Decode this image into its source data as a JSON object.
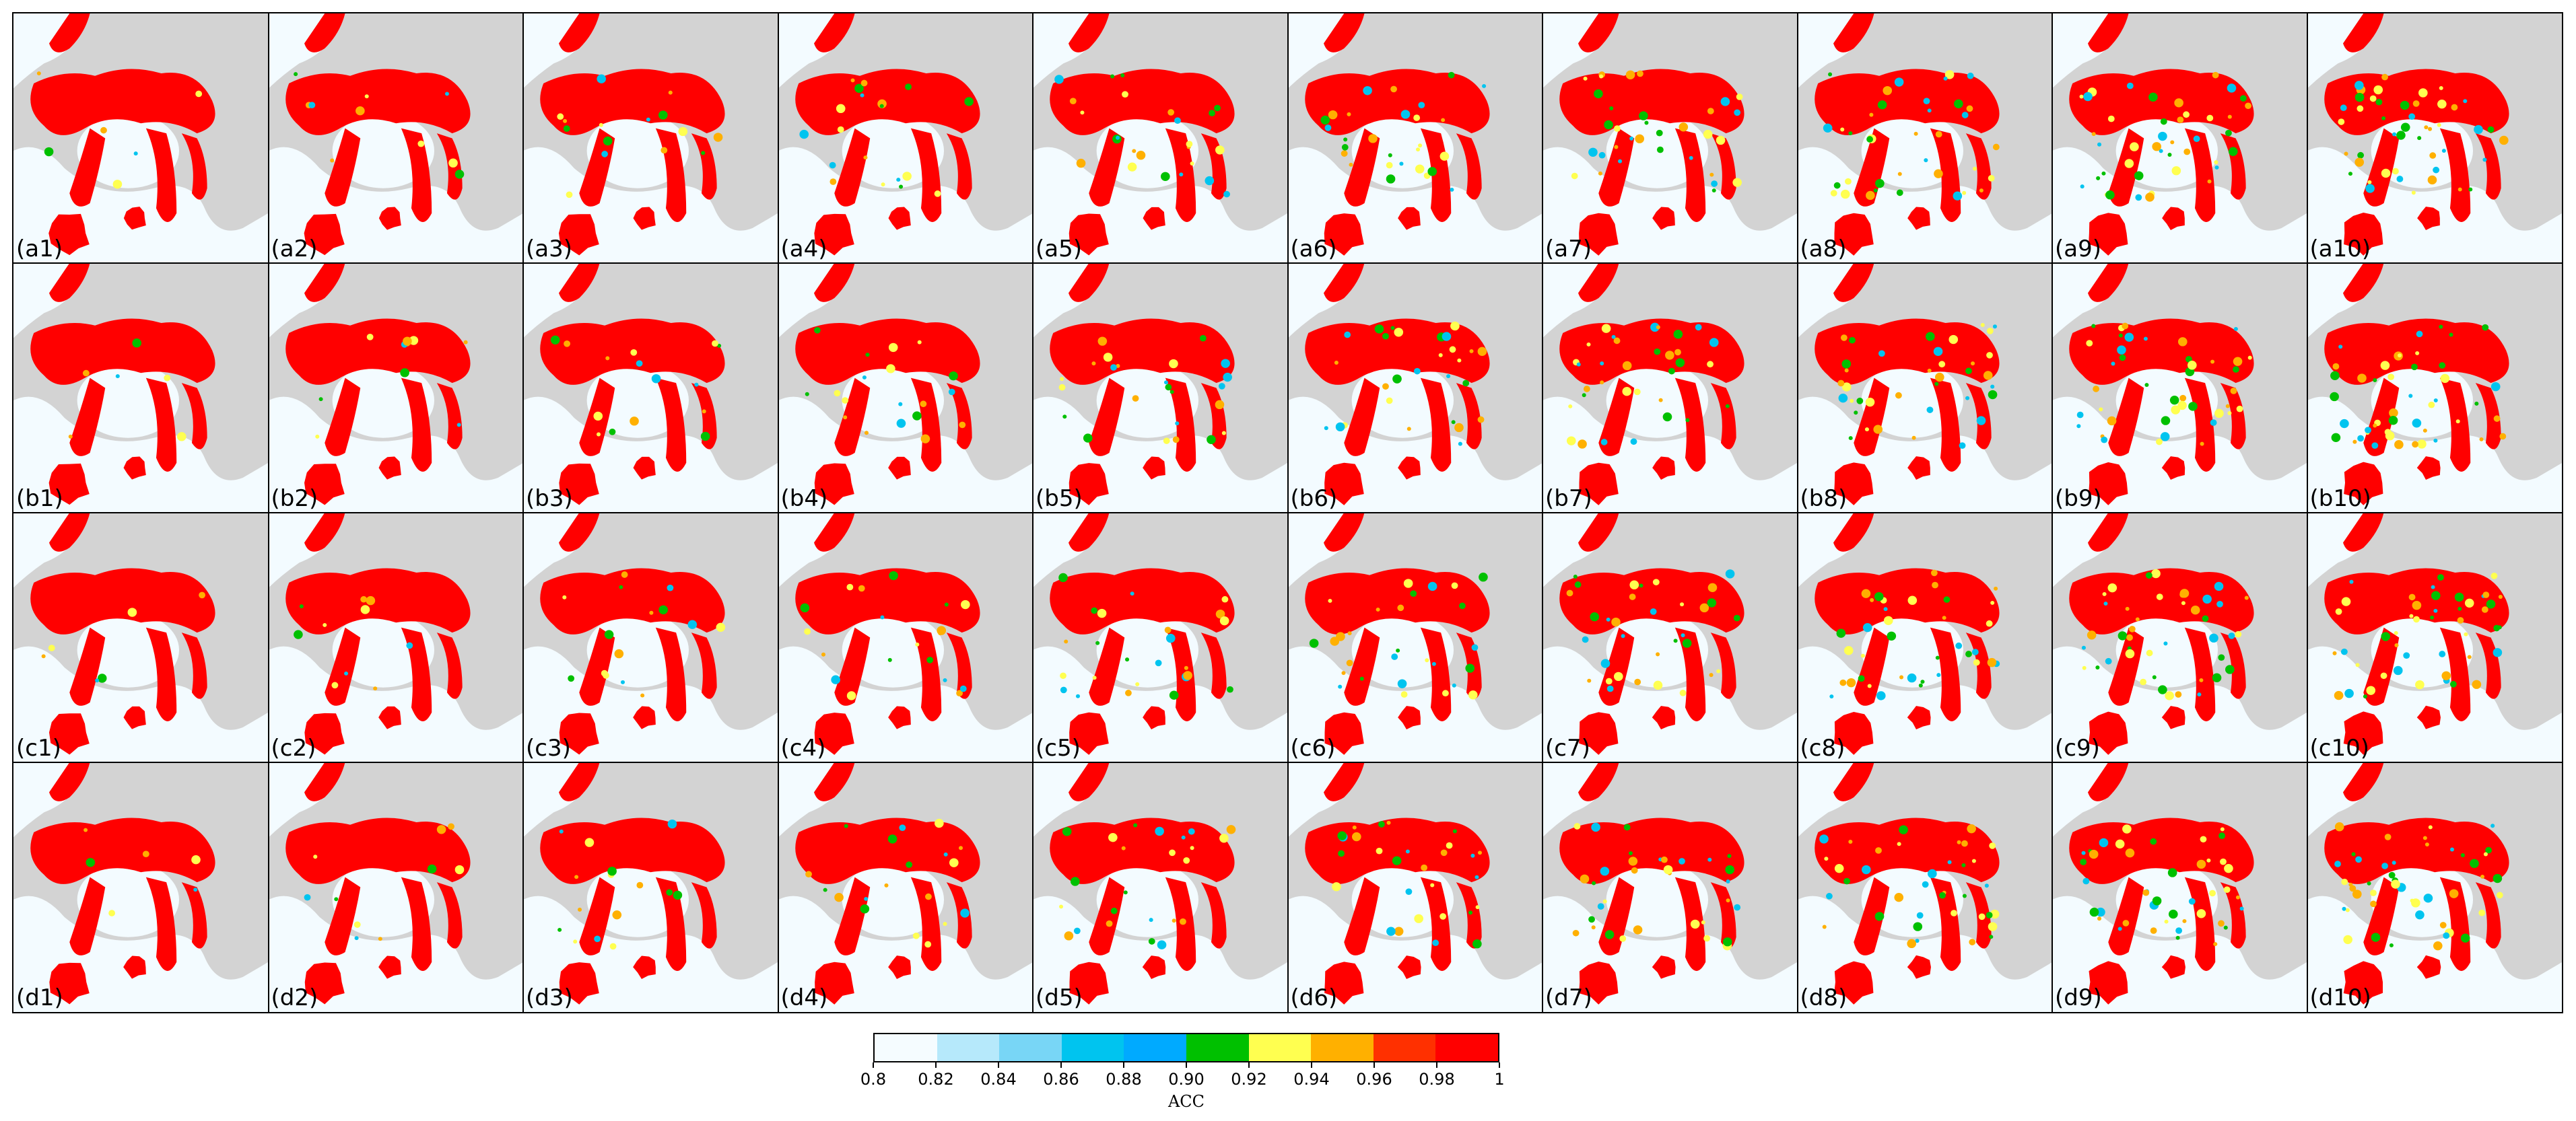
{
  "panels": [
    [
      "(a1)",
      "(a2)",
      "(a3)",
      "(a4)",
      "(a5)",
      "(a6)",
      "(a7)",
      "(a8)",
      "(a9)",
      "(a10)"
    ],
    [
      "(b1)",
      "(b2)",
      "(b3)",
      "(b4)",
      "(b5)",
      "(b6)",
      "(b7)",
      "(b8)",
      "(b9)",
      "(b10)"
    ],
    [
      "(c1)",
      "(c2)",
      "(c3)",
      "(c4)",
      "(c5)",
      "(c6)",
      "(c7)",
      "(c8)",
      "(c9)",
      "(c10)"
    ],
    [
      "(d1)",
      "(d2)",
      "(d3)",
      "(d4)",
      "(d5)",
      "(d6)",
      "(d7)",
      "(d8)",
      "(d9)",
      "(d10)"
    ]
  ],
  "map_colors": {
    "land": "#d3d3d3",
    "ocean": "#f3fbff",
    "ice_high": "#ff0000",
    "ice_mid": "#ffb000",
    "ice_low": "#ffff50",
    "green": "#00c000",
    "cyan": "#00c4ef"
  },
  "colorbar": {
    "title": "ACC",
    "ticks": [
      "0.8",
      "0.82",
      "0.84",
      "0.86",
      "0.88",
      "0.90",
      "0.92",
      "0.94",
      "0.96",
      "0.98",
      "1"
    ],
    "colors": [
      "#f5fcff",
      "#b6e9fb",
      "#78d6f6",
      "#00c4ef",
      "#00aaff",
      "#00c000",
      "#ffff50",
      "#ffb000",
      "#ff3000",
      "#ff0000"
    ]
  }
}
